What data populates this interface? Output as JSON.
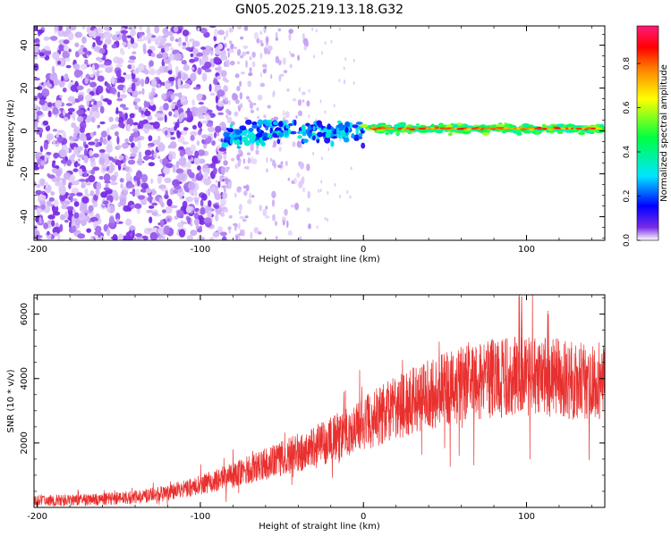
{
  "title": "GN05.2025.219.13.18.G32",
  "colors": {
    "snr_line": "#e8302e",
    "scatter_low": "#7a2be6",
    "colormap": [
      "#ffffff",
      "#6a00ff",
      "#0000ff",
      "#00e5ff",
      "#00ff40",
      "#ffff00",
      "#ff7f00",
      "#ff0000",
      "#ff1a7a"
    ]
  },
  "chart_data": [
    {
      "type": "heatmap",
      "title": "",
      "xlabel": "Height of straight line (km)",
      "ylabel": "Frequency (Hz)",
      "xlim": [
        -202,
        148
      ],
      "ylim": [
        -51,
        49
      ],
      "x_ticks": [
        -200,
        -100,
        0,
        100
      ],
      "y_ticks": [
        -40,
        -20,
        0,
        20,
        40
      ],
      "colorbar": {
        "label": "Normalized spectral amplitude",
        "range": [
          0,
          0.97
        ],
        "ticks": [
          0.0,
          0.2,
          0.4,
          0.6,
          0.8
        ]
      },
      "regions": [
        {
          "x_range": [
            -202,
            -85
          ],
          "y_range": [
            -51,
            49
          ],
          "amplitude": 0.05,
          "density": "dense"
        },
        {
          "x_range": [
            -85,
            -35
          ],
          "y_range": [
            -51,
            49
          ],
          "amplitude": 0.02,
          "density": "sparse"
        },
        {
          "x_range": [
            -85,
            0
          ],
          "y_range": [
            -6,
            5
          ],
          "amplitude": 0.3,
          "density": "ridge"
        },
        {
          "x_range": [
            0,
            148
          ],
          "y_range": [
            -1,
            3
          ],
          "amplitude": 0.75,
          "density": "ridge"
        }
      ]
    },
    {
      "type": "line",
      "title": "",
      "xlabel": "Height of straight line (km)",
      "ylabel": "SNR (10 * v/v)",
      "xlim": [
        -202,
        148
      ],
      "ylim": [
        0,
        6600
      ],
      "x_ticks": [
        -200,
        -100,
        0,
        100
      ],
      "y_ticks": [
        2000,
        4000,
        6000
      ],
      "trend": {
        "x": [
          -202,
          -180,
          -160,
          -140,
          -120,
          -100,
          -80,
          -60,
          -40,
          -20,
          0,
          20,
          40,
          60,
          80,
          100,
          120,
          140,
          148
        ],
        "y": [
          200,
          220,
          250,
          320,
          450,
          700,
          1000,
          1350,
          1700,
          2100,
          2600,
          3100,
          3500,
          3800,
          4000,
          4100,
          4000,
          3900,
          4000
        ]
      }
    }
  ]
}
